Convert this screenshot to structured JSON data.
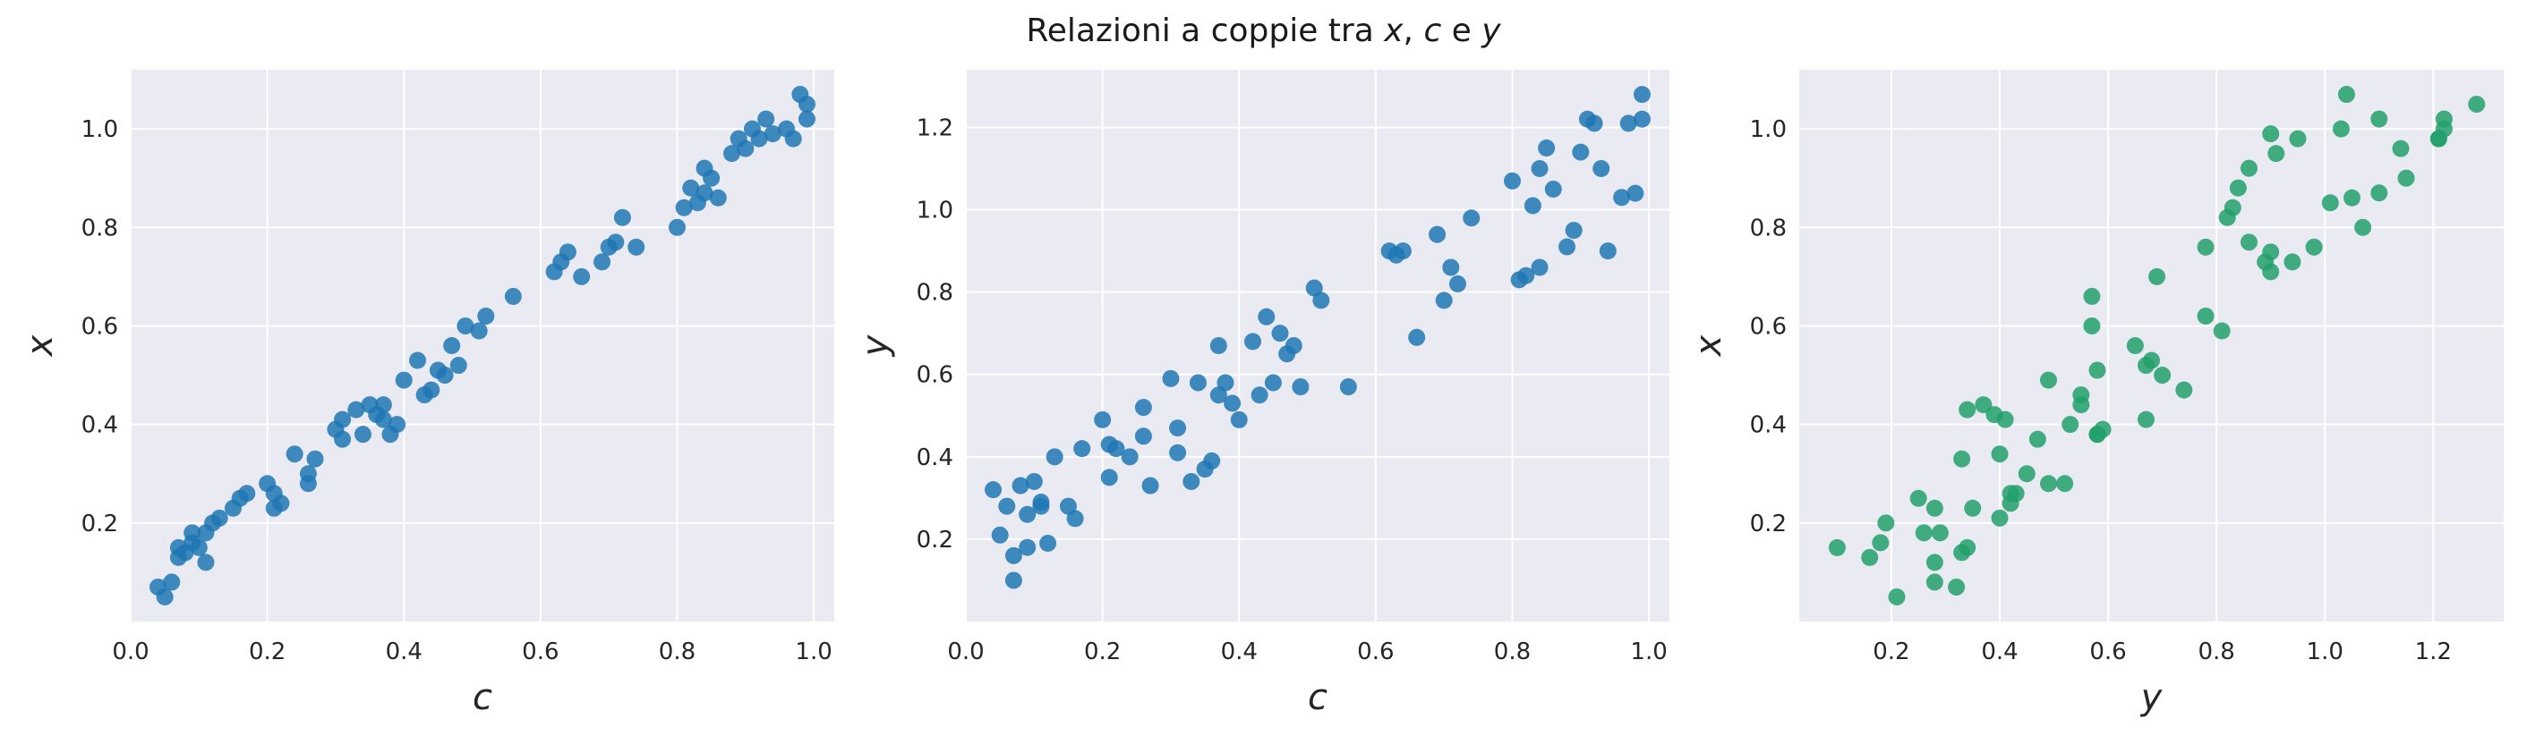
{
  "figure": {
    "title_parts": [
      {
        "text": "Relazioni a coppie tra ",
        "italic": false
      },
      {
        "text": "x",
        "italic": true
      },
      {
        "text": ", ",
        "italic": false
      },
      {
        "text": "c",
        "italic": true
      },
      {
        "text": " e ",
        "italic": false
      },
      {
        "text": "y",
        "italic": true
      }
    ]
  },
  "colors": {
    "background": "#eaeaf2",
    "grid": "#ffffff",
    "point_blue": "#1f77b4",
    "point_green": "#22a06b",
    "text": "#262626"
  },
  "chart_data": [
    {
      "type": "scatter",
      "title": "",
      "xlabel": "c",
      "ylabel": "x",
      "xlim": [
        0.0,
        1.03
      ],
      "ylim": [
        0.0,
        1.12
      ],
      "xticks": [
        0.0,
        0.2,
        0.4,
        0.6,
        0.8,
        1.0
      ],
      "xtick_labels": [
        "0.0",
        "0.2",
        "0.4",
        "0.6",
        "0.8",
        "1.0"
      ],
      "yticks": [
        0.2,
        0.4,
        0.6,
        0.8,
        1.0
      ],
      "ytick_labels": [
        "0.2",
        "0.4",
        "0.6",
        "0.8",
        "1.0"
      ],
      "grid": true,
      "color": "#1f77b4",
      "x": [
        0.04,
        0.05,
        0.06,
        0.07,
        0.07,
        0.08,
        0.09,
        0.09,
        0.1,
        0.11,
        0.11,
        0.12,
        0.13,
        0.15,
        0.16,
        0.17,
        0.2,
        0.21,
        0.21,
        0.22,
        0.24,
        0.26,
        0.26,
        0.27,
        0.3,
        0.31,
        0.31,
        0.33,
        0.34,
        0.35,
        0.36,
        0.37,
        0.37,
        0.38,
        0.39,
        0.4,
        0.42,
        0.43,
        0.44,
        0.45,
        0.46,
        0.47,
        0.48,
        0.49,
        0.51,
        0.52,
        0.56,
        0.62,
        0.63,
        0.64,
        0.66,
        0.69,
        0.7,
        0.71,
        0.72,
        0.74,
        0.8,
        0.81,
        0.82,
        0.83,
        0.84,
        0.84,
        0.85,
        0.86,
        0.88,
        0.89,
        0.9,
        0.91,
        0.92,
        0.93,
        0.94,
        0.96,
        0.97,
        0.98,
        0.99,
        0.99
      ],
      "y": [
        0.07,
        0.05,
        0.08,
        0.13,
        0.15,
        0.14,
        0.18,
        0.16,
        0.15,
        0.12,
        0.18,
        0.2,
        0.21,
        0.23,
        0.25,
        0.26,
        0.28,
        0.23,
        0.26,
        0.24,
        0.34,
        0.28,
        0.3,
        0.33,
        0.39,
        0.37,
        0.41,
        0.43,
        0.38,
        0.44,
        0.42,
        0.44,
        0.41,
        0.38,
        0.4,
        0.49,
        0.53,
        0.46,
        0.47,
        0.51,
        0.5,
        0.56,
        0.52,
        0.6,
        0.59,
        0.62,
        0.66,
        0.71,
        0.73,
        0.75,
        0.7,
        0.73,
        0.76,
        0.77,
        0.82,
        0.76,
        0.8,
        0.84,
        0.88,
        0.85,
        0.87,
        0.92,
        0.9,
        0.86,
        0.95,
        0.98,
        0.96,
        1.0,
        0.98,
        1.02,
        0.99,
        1.0,
        0.98,
        1.07,
        1.05,
        1.02
      ]
    },
    {
      "type": "scatter",
      "title": "",
      "xlabel": "c",
      "ylabel": "y",
      "xlim": [
        0.0,
        1.03
      ],
      "ylim": [
        0.0,
        1.34
      ],
      "xticks": [
        0.0,
        0.2,
        0.4,
        0.6,
        0.8,
        1.0
      ],
      "xtick_labels": [
        "0.0",
        "0.2",
        "0.4",
        "0.6",
        "0.8",
        "1.0"
      ],
      "yticks": [
        0.2,
        0.4,
        0.6,
        0.8,
        1.0,
        1.2
      ],
      "ytick_labels": [
        "0.2",
        "0.4",
        "0.6",
        "0.8",
        "1.0",
        "1.2"
      ],
      "grid": true,
      "color": "#1f77b4",
      "x": [
        0.04,
        0.05,
        0.06,
        0.07,
        0.07,
        0.08,
        0.09,
        0.09,
        0.1,
        0.11,
        0.11,
        0.12,
        0.13,
        0.15,
        0.16,
        0.17,
        0.2,
        0.21,
        0.21,
        0.22,
        0.24,
        0.26,
        0.26,
        0.27,
        0.3,
        0.31,
        0.31,
        0.33,
        0.34,
        0.35,
        0.36,
        0.37,
        0.37,
        0.38,
        0.39,
        0.4,
        0.42,
        0.43,
        0.44,
        0.45,
        0.46,
        0.47,
        0.48,
        0.49,
        0.51,
        0.52,
        0.56,
        0.62,
        0.63,
        0.64,
        0.66,
        0.69,
        0.7,
        0.71,
        0.72,
        0.74,
        0.8,
        0.81,
        0.82,
        0.83,
        0.84,
        0.84,
        0.85,
        0.86,
        0.88,
        0.89,
        0.9,
        0.91,
        0.92,
        0.93,
        0.94,
        0.96,
        0.97,
        0.98,
        0.99,
        0.99
      ],
      "y": [
        0.32,
        0.21,
        0.28,
        0.16,
        0.1,
        0.33,
        0.26,
        0.18,
        0.34,
        0.28,
        0.29,
        0.19,
        0.4,
        0.28,
        0.25,
        0.42,
        0.49,
        0.35,
        0.43,
        0.42,
        0.4,
        0.52,
        0.45,
        0.33,
        0.59,
        0.47,
        0.41,
        0.34,
        0.58,
        0.37,
        0.39,
        0.55,
        0.67,
        0.58,
        0.53,
        0.49,
        0.68,
        0.55,
        0.74,
        0.58,
        0.7,
        0.65,
        0.67,
        0.57,
        0.81,
        0.78,
        0.57,
        0.9,
        0.89,
        0.9,
        0.69,
        0.94,
        0.78,
        0.86,
        0.82,
        0.98,
        1.07,
        0.83,
        0.84,
        1.01,
        1.1,
        0.86,
        1.15,
        1.05,
        0.91,
        0.95,
        1.14,
        1.22,
        1.21,
        1.1,
        0.9,
        1.03,
        1.21,
        1.04,
        1.28,
        1.22
      ]
    },
    {
      "type": "scatter",
      "title": "",
      "xlabel": "y",
      "ylabel": "x",
      "xlim": [
        0.03,
        1.33
      ],
      "ylim": [
        0.0,
        1.12
      ],
      "xticks": [
        0.2,
        0.4,
        0.6,
        0.8,
        1.0,
        1.2
      ],
      "xtick_labels": [
        "0.2",
        "0.4",
        "0.6",
        "0.8",
        "1.0",
        "1.2"
      ],
      "yticks": [
        0.2,
        0.4,
        0.6,
        0.8,
        1.0
      ],
      "ytick_labels": [
        "0.2",
        "0.4",
        "0.6",
        "0.8",
        "1.0"
      ],
      "grid": true,
      "color": "#22a06b",
      "x": [
        0.32,
        0.21,
        0.28,
        0.16,
        0.1,
        0.33,
        0.26,
        0.18,
        0.34,
        0.28,
        0.29,
        0.19,
        0.4,
        0.28,
        0.25,
        0.42,
        0.49,
        0.35,
        0.43,
        0.42,
        0.4,
        0.52,
        0.45,
        0.33,
        0.59,
        0.47,
        0.41,
        0.34,
        0.58,
        0.37,
        0.39,
        0.55,
        0.67,
        0.58,
        0.53,
        0.49,
        0.68,
        0.55,
        0.74,
        0.58,
        0.7,
        0.65,
        0.67,
        0.57,
        0.81,
        0.78,
        0.57,
        0.9,
        0.89,
        0.9,
        0.69,
        0.94,
        0.78,
        0.86,
        0.82,
        0.98,
        1.07,
        0.83,
        0.84,
        1.01,
        1.1,
        0.86,
        1.15,
        1.05,
        0.91,
        0.95,
        1.14,
        1.22,
        1.21,
        1.1,
        0.9,
        1.03,
        1.21,
        1.04,
        1.28,
        1.22
      ],
      "y": [
        0.07,
        0.05,
        0.08,
        0.13,
        0.15,
        0.14,
        0.18,
        0.16,
        0.15,
        0.12,
        0.18,
        0.2,
        0.21,
        0.23,
        0.25,
        0.26,
        0.28,
        0.23,
        0.26,
        0.24,
        0.34,
        0.28,
        0.3,
        0.33,
        0.39,
        0.37,
        0.41,
        0.43,
        0.38,
        0.44,
        0.42,
        0.44,
        0.41,
        0.38,
        0.4,
        0.49,
        0.53,
        0.46,
        0.47,
        0.51,
        0.5,
        0.56,
        0.52,
        0.6,
        0.59,
        0.62,
        0.66,
        0.71,
        0.73,
        0.75,
        0.7,
        0.73,
        0.76,
        0.77,
        0.82,
        0.76,
        0.8,
        0.84,
        0.88,
        0.85,
        0.87,
        0.92,
        0.9,
        0.86,
        0.95,
        0.98,
        0.96,
        1.0,
        0.98,
        1.02,
        0.99,
        1.0,
        0.98,
        1.07,
        1.05,
        1.02
      ]
    }
  ]
}
